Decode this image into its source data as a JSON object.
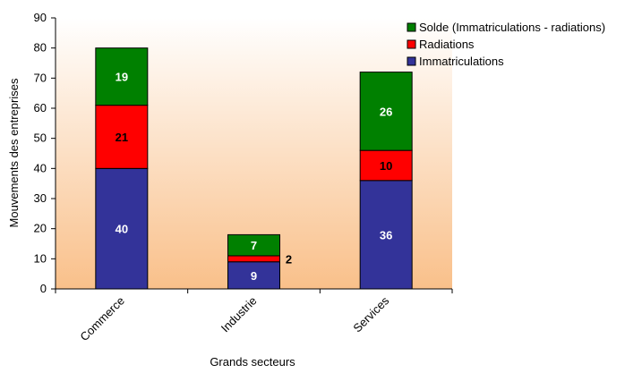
{
  "chart_data": {
    "type": "bar",
    "stacked": true,
    "categories": [
      "Commerce",
      "Industrie",
      "Services"
    ],
    "series": [
      {
        "name": "Immatriculations",
        "values": [
          40,
          9,
          36
        ],
        "color": "#333399",
        "label_color": "#ffffff"
      },
      {
        "name": "Radiations",
        "values": [
          21,
          2,
          10
        ],
        "color": "#ff0000",
        "label_color": "#000000"
      },
      {
        "name": "Solde (Immatriculations - radiations)",
        "values": [
          19,
          7,
          26
        ],
        "color": "#008000",
        "label_color": "#ffffff"
      }
    ],
    "xlabel": "Grands secteurs",
    "ylabel": "Mouvements des entreprises",
    "ylim": [
      0,
      90
    ],
    "yticks": [
      0,
      10,
      20,
      30,
      40,
      50,
      60,
      70,
      80,
      90
    ],
    "grid": false,
    "legend_position": "top-right",
    "legend_order": [
      "Solde (Immatriculations - radiations)",
      "Radiations",
      "Immatriculations"
    ],
    "background_gradient": [
      "#ffffff",
      "#f9c08a"
    ]
  }
}
